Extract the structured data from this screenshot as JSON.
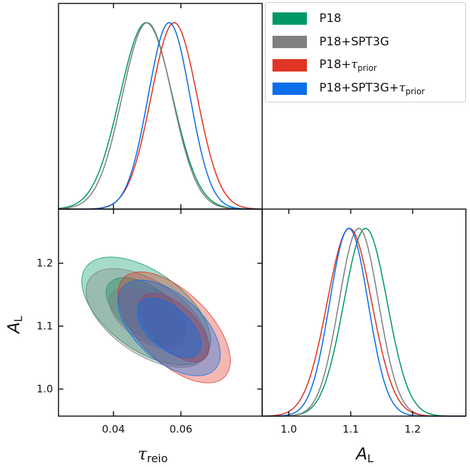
{
  "chart_data": {
    "type": "triangle-corner-plot",
    "title": "",
    "parameters": [
      {
        "name": "tau_reio",
        "label_main": "τ",
        "label_sub": "reio",
        "range": [
          0.0237,
          0.0841
        ],
        "ticks": [
          0.04,
          0.06
        ],
        "tick_labels": [
          "0.04",
          "0.06"
        ]
      },
      {
        "name": "A_L",
        "label_main": "A",
        "label_sub": "L",
        "range": [
          0.957,
          1.286
        ],
        "ticks": [
          1.0,
          1.1,
          1.2
        ],
        "tick_labels": [
          "1.0",
          "1.1",
          "1.2"
        ]
      }
    ],
    "legend": {
      "position": "top-right",
      "entries": [
        {
          "id": "p18",
          "text": "P18",
          "sub": "",
          "color": "#009966"
        },
        {
          "id": "p18_spt",
          "text": "P18+SPT3G",
          "sub": "",
          "color": "#808080"
        },
        {
          "id": "p18_tau",
          "text": "P18+",
          "tau": "τ",
          "sub": "prior",
          "color": "#e03424"
        },
        {
          "id": "p18_spt_tau",
          "text": "P18+SPT3G+",
          "tau": "τ",
          "sub": "prior",
          "color": "#0a6ee8"
        }
      ]
    },
    "series": [
      {
        "name": "P18",
        "color": "#009966",
        "tau_mean": 0.0497,
        "tau_sigma": 0.0078,
        "AL_mean": 1.124,
        "AL_sigma": 0.035,
        "corr": -0.55
      },
      {
        "name": "P18+SPT3G",
        "color": "#808080",
        "tau_mean": 0.05,
        "tau_sigma": 0.0074,
        "AL_mean": 1.113,
        "AL_sigma": 0.032,
        "corr": -0.55
      },
      {
        "name": "P18+τprior",
        "color": "#e03424",
        "tau_mean": 0.058,
        "tau_sigma": 0.0068,
        "AL_mean": 1.098,
        "AL_sigma": 0.036,
        "corr": -0.6
      },
      {
        "name": "P18+SPT3G+τprior",
        "color": "#0a6ee8",
        "tau_mean": 0.0565,
        "tau_sigma": 0.0062,
        "AL_mean": 1.097,
        "AL_sigma": 0.031,
        "corr": -0.55
      }
    ],
    "contour_levels": [
      "68%",
      "95%"
    ],
    "grid": false
  }
}
